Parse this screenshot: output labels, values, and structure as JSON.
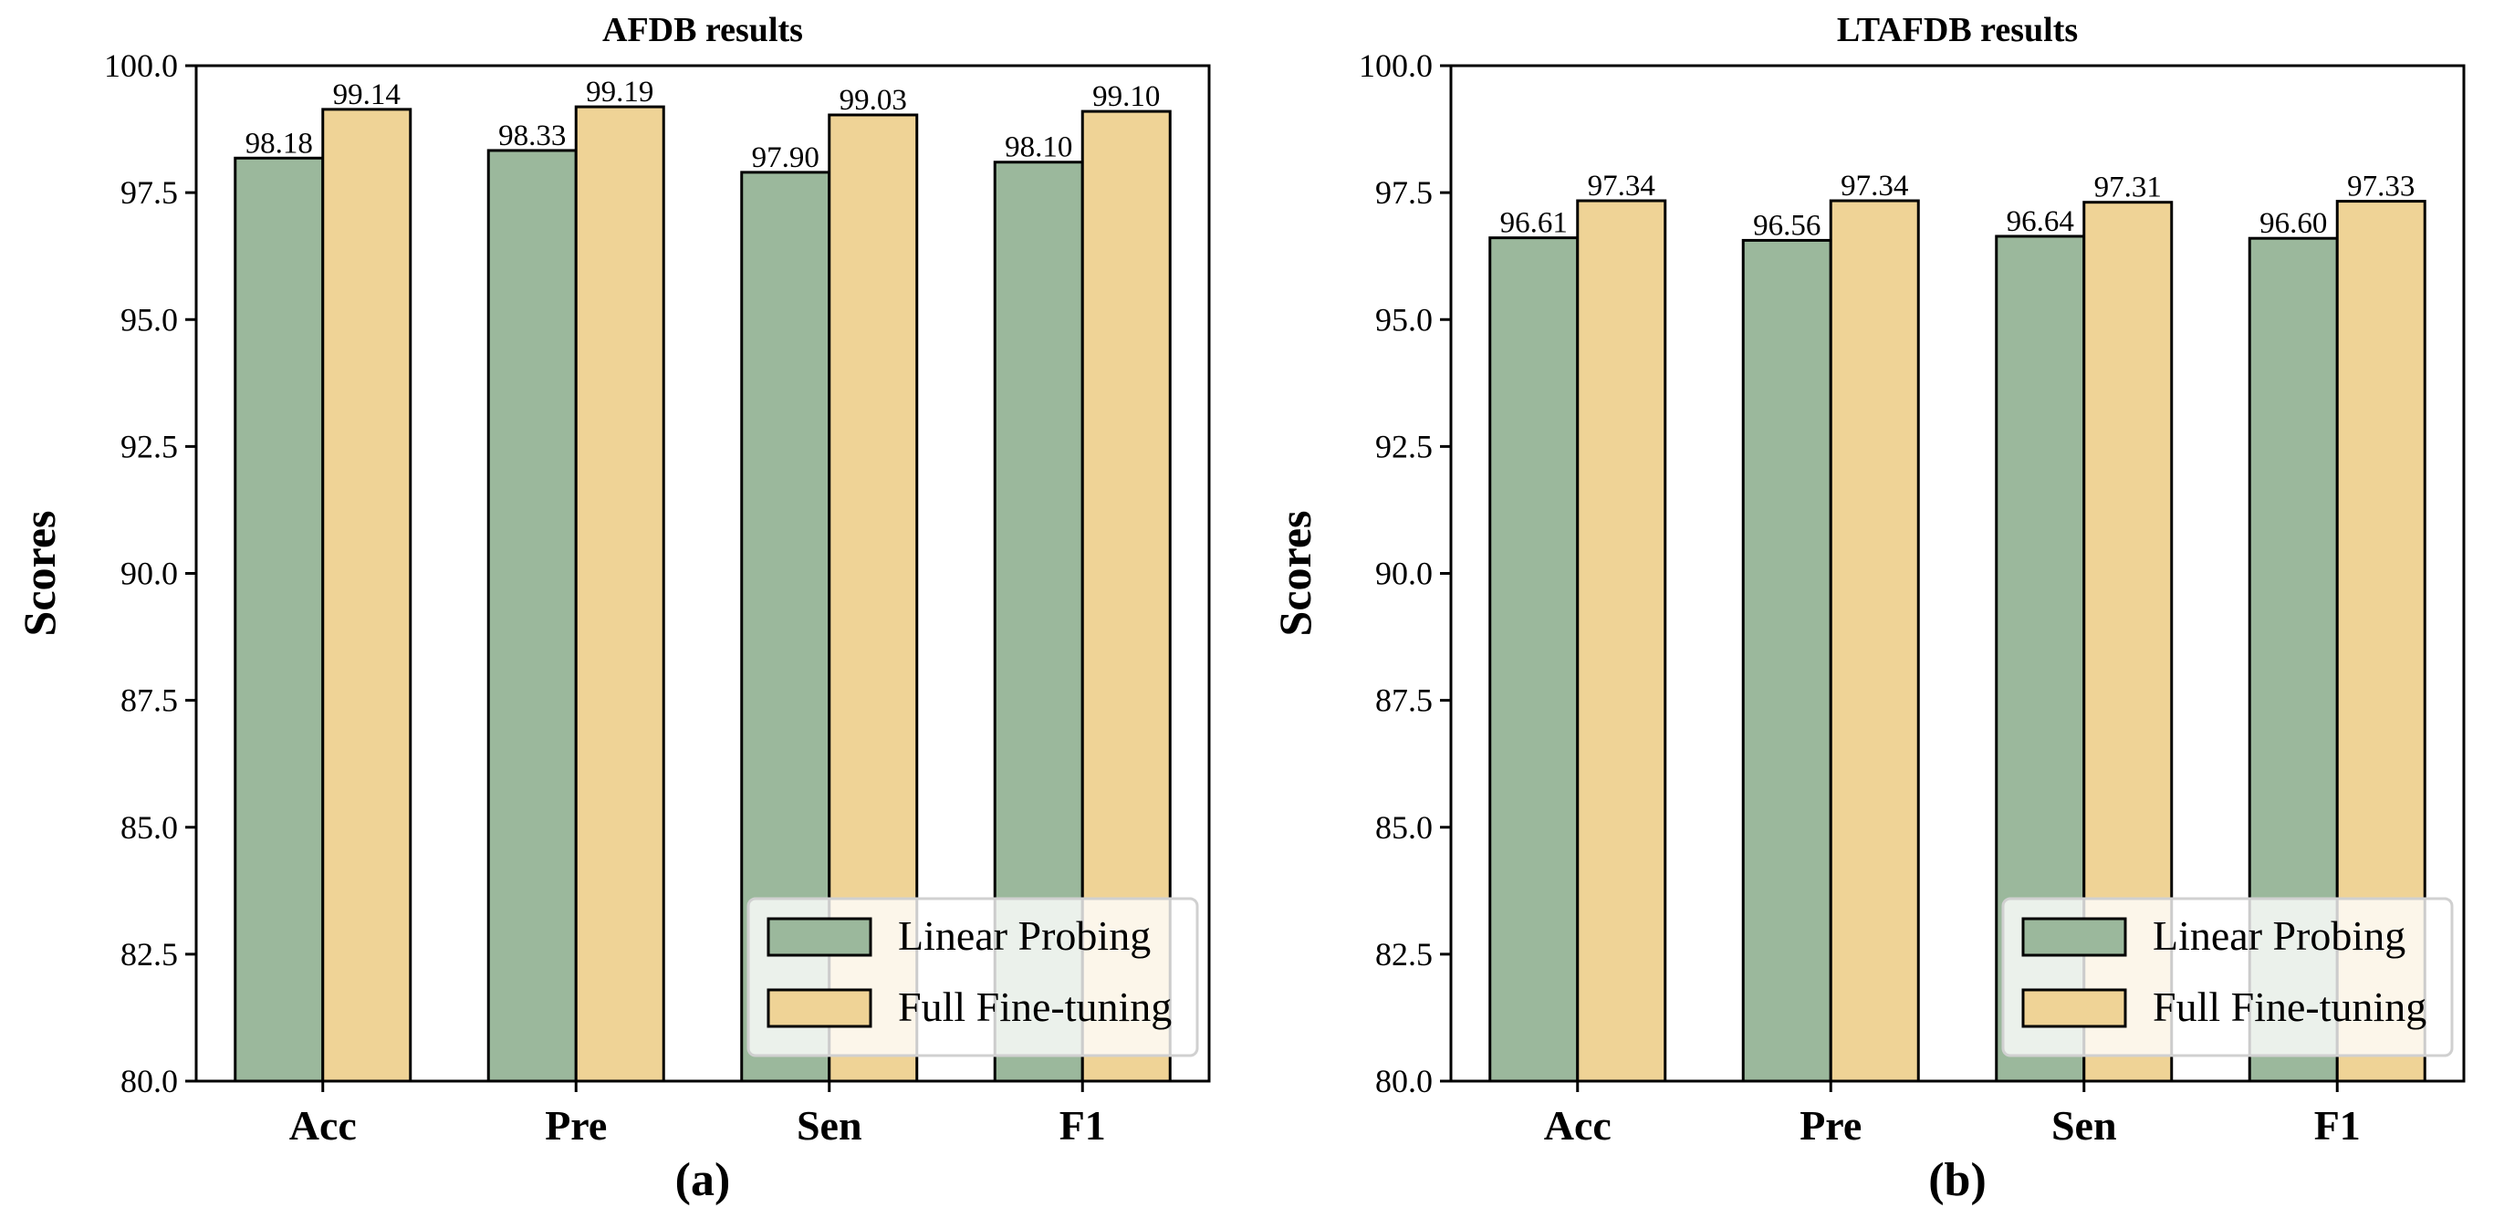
{
  "colors": {
    "linear": "#9bb89c",
    "full": "#efd396",
    "edge": "#000000"
  },
  "legend": [
    "Linear Probing",
    "Full Fine-tuning"
  ],
  "chart_data": [
    {
      "type": "bar",
      "title": "AFDB results",
      "sublabel": "(a)",
      "ylabel": "Scores",
      "xlabel": "",
      "categories": [
        "Acc",
        "Pre",
        "Sen",
        "F1"
      ],
      "ylim": [
        80.0,
        100.0
      ],
      "yticks": [
        "80.0",
        "82.5",
        "85.0",
        "87.5",
        "90.0",
        "92.5",
        "95.0",
        "97.5",
        "100.0"
      ],
      "legend_position": "lower-right",
      "series": [
        {
          "name": "Linear Probing",
          "values": [
            98.18,
            98.33,
            97.9,
            98.1
          ],
          "labels": [
            "98.18",
            "98.33",
            "97.90",
            "98.10"
          ]
        },
        {
          "name": "Full Fine-tuning",
          "values": [
            99.14,
            99.19,
            99.03,
            99.1
          ],
          "labels": [
            "99.14",
            "99.19",
            "99.03",
            "99.10"
          ]
        }
      ]
    },
    {
      "type": "bar",
      "title": "LTAFDB results",
      "sublabel": "(b)",
      "ylabel": "Scores",
      "xlabel": "",
      "categories": [
        "Acc",
        "Pre",
        "Sen",
        "F1"
      ],
      "ylim": [
        80.0,
        100.0
      ],
      "yticks": [
        "80.0",
        "82.5",
        "85.0",
        "87.5",
        "90.0",
        "92.5",
        "95.0",
        "97.5",
        "100.0"
      ],
      "legend_position": "lower-right",
      "series": [
        {
          "name": "Linear Probing",
          "values": [
            96.61,
            96.56,
            96.64,
            96.6
          ],
          "labels": [
            "96.61",
            "96.56",
            "96.64",
            "96.60"
          ]
        },
        {
          "name": "Full Fine-tuning",
          "values": [
            97.34,
            97.34,
            97.31,
            97.33
          ],
          "labels": [
            "97.34",
            "97.34",
            "97.31",
            "97.33"
          ]
        }
      ]
    }
  ]
}
